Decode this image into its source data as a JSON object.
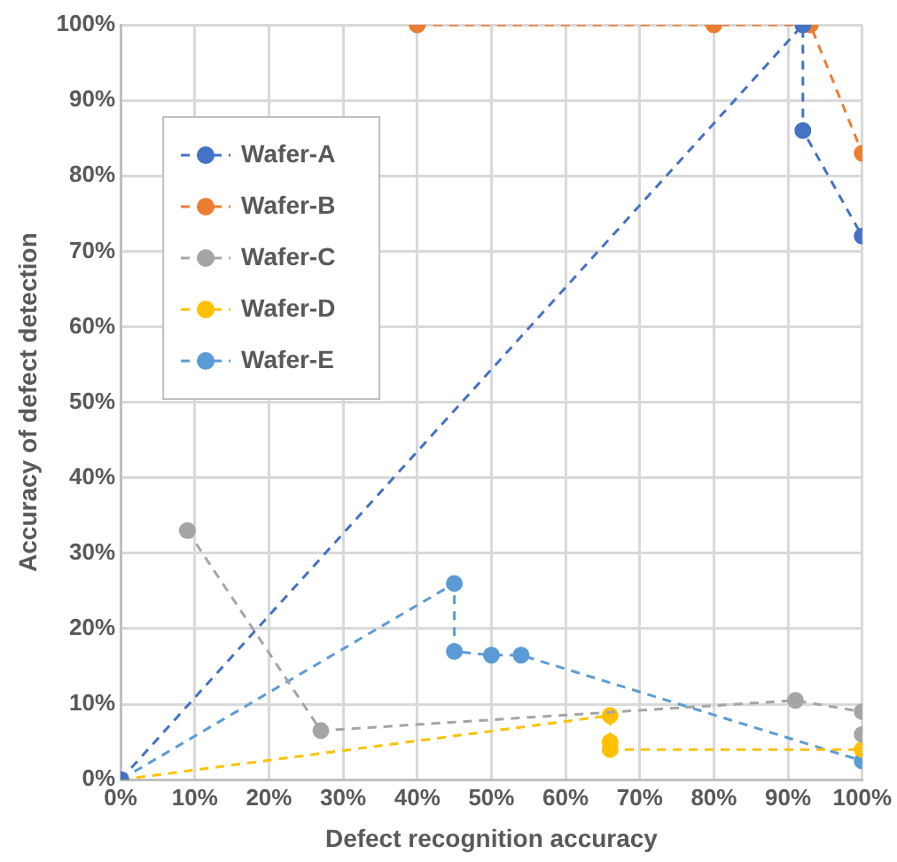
{
  "chart_data": {
    "type": "line",
    "xlabel": "Defect recognition accuracy",
    "ylabel": "Accuracy of defect detection",
    "xlim": [
      0,
      100
    ],
    "ylim": [
      0,
      100
    ],
    "xticks": [
      {
        "value": 0,
        "label": "0%"
      },
      {
        "value": 10,
        "label": "10%"
      },
      {
        "value": 20,
        "label": "20%"
      },
      {
        "value": 30,
        "label": "30%"
      },
      {
        "value": 40,
        "label": "40%"
      },
      {
        "value": 50,
        "label": "50%"
      },
      {
        "value": 60,
        "label": "60%"
      },
      {
        "value": 70,
        "label": "70%"
      },
      {
        "value": 80,
        "label": "80%"
      },
      {
        "value": 90,
        "label": "90%"
      },
      {
        "value": 100,
        "label": "100%"
      }
    ],
    "yticks": [
      {
        "value": 0,
        "label": "0%"
      },
      {
        "value": 10,
        "label": "10%"
      },
      {
        "value": 20,
        "label": "20%"
      },
      {
        "value": 30,
        "label": "30%"
      },
      {
        "value": 40,
        "label": "40%"
      },
      {
        "value": 50,
        "label": "50%"
      },
      {
        "value": 60,
        "label": "60%"
      },
      {
        "value": 70,
        "label": "70%"
      },
      {
        "value": 80,
        "label": "80%"
      },
      {
        "value": 90,
        "label": "90%"
      },
      {
        "value": 100,
        "label": "100%"
      }
    ],
    "grid": true,
    "legend": "top left",
    "marker": "circle",
    "line_style": "dashed",
    "series": [
      {
        "name": "Wafer-A",
        "color": "#4472c4",
        "x": [
          0,
          92,
          92,
          100
        ],
        "values": [
          0,
          100,
          86,
          72
        ]
      },
      {
        "name": "Wafer-B",
        "color": "#ed7d31",
        "x": [
          40,
          80,
          93,
          100
        ],
        "values": [
          100,
          100,
          100,
          83
        ]
      },
      {
        "name": "Wafer-C",
        "color": "#a5a5a5",
        "x": [
          9,
          27,
          91,
          100,
          100
        ],
        "values": [
          33,
          6.5,
          10.5,
          9,
          6
        ]
      },
      {
        "name": "Wafer-D",
        "color": "#ffc000",
        "x": [
          0,
          66,
          66,
          66,
          100
        ],
        "values": [
          0,
          8.5,
          5,
          4,
          4
        ]
      },
      {
        "name": "Wafer-E",
        "color": "#5b9bd5",
        "x": [
          0,
          45,
          45,
          50,
          54,
          100
        ],
        "values": [
          0,
          26,
          17,
          16.5,
          16.5,
          2.5
        ]
      }
    ]
  }
}
